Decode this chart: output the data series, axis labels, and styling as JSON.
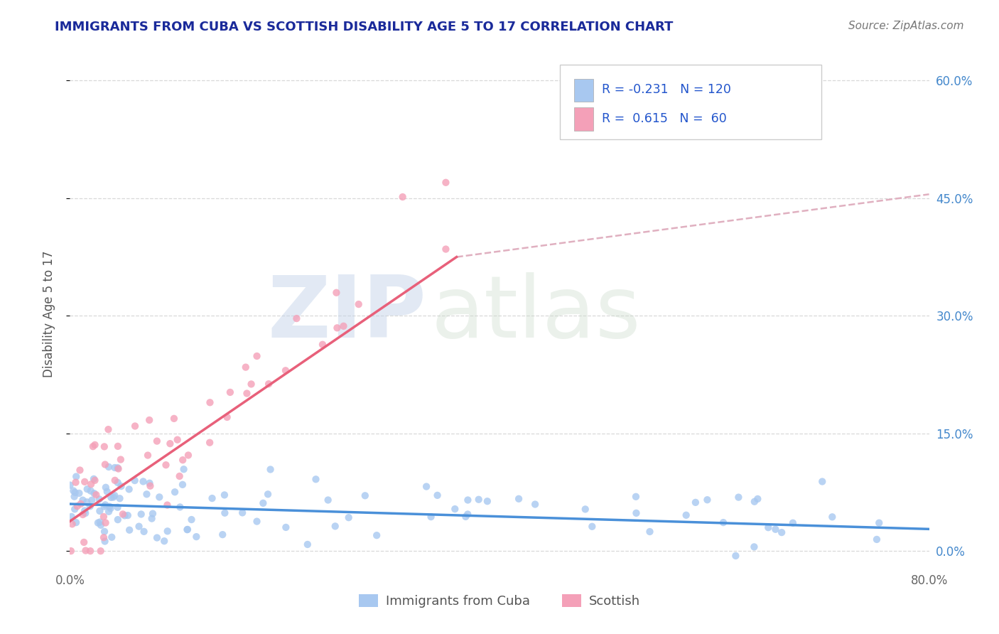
{
  "title": "IMMIGRANTS FROM CUBA VS SCOTTISH DISABILITY AGE 5 TO 17 CORRELATION CHART",
  "source": "Source: ZipAtlas.com",
  "ylabel": "Disability Age 5 to 17",
  "xmin": 0.0,
  "xmax": 0.8,
  "ymin": -0.025,
  "ymax": 0.63,
  "series1_label": "Immigrants from Cuba",
  "series1_color": "#a8c8f0",
  "series1_R": "-0.231",
  "series1_N": "120",
  "series2_label": "Scottish",
  "series2_color": "#f4a0b8",
  "series2_R": "0.615",
  "series2_N": "60",
  "trend1_color": "#4a90d9",
  "trend2_color": "#e8607a",
  "ref_line_color": "#e0b0c0",
  "legend_R_color": "#2255cc",
  "watermark_color": "#c8d8ee",
  "background_color": "#ffffff",
  "grid_color": "#d8d8d8",
  "title_color": "#1a2a9a",
  "title_fontsize": 13,
  "axis_label_color": "#555555",
  "right_tick_color": "#4488cc"
}
